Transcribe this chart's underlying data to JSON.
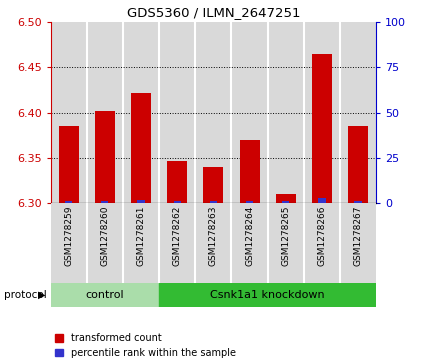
{
  "title": "GDS5360 / ILMN_2647251",
  "samples": [
    "GSM1278259",
    "GSM1278260",
    "GSM1278261",
    "GSM1278262",
    "GSM1278263",
    "GSM1278264",
    "GSM1278265",
    "GSM1278266",
    "GSM1278267"
  ],
  "transformed_counts": [
    6.385,
    6.402,
    6.422,
    6.347,
    6.34,
    6.37,
    6.31,
    6.465,
    6.385
  ],
  "percentile_ranks": [
    1,
    1,
    2,
    1,
    1,
    1,
    1,
    3,
    1
  ],
  "ylim_left": [
    6.3,
    6.5
  ],
  "ylim_right": [
    0,
    100
  ],
  "yticks_left": [
    6.3,
    6.35,
    6.4,
    6.45,
    6.5
  ],
  "yticks_right": [
    0,
    25,
    50,
    75,
    100
  ],
  "bar_base": 6.3,
  "bar_color_red": "#cc0000",
  "bar_color_blue": "#3333cc",
  "control_color": "#aaddaa",
  "knockdown_color": "#33bb33",
  "control_indices": [
    0,
    1,
    2
  ],
  "knockdown_indices": [
    3,
    4,
    5,
    6,
    7,
    8
  ],
  "control_label": "control",
  "knockdown_label": "Csnk1a1 knockdown",
  "protocol_label": "protocol",
  "legend_red": "transformed count",
  "legend_blue": "percentile rank within the sample",
  "tick_label_color_left": "#cc0000",
  "tick_label_color_right": "#0000cc",
  "bar_width": 0.55,
  "blue_bar_width": 0.2,
  "bg_color_sample": "#d9d9d9",
  "bg_color_white": "#ffffff"
}
